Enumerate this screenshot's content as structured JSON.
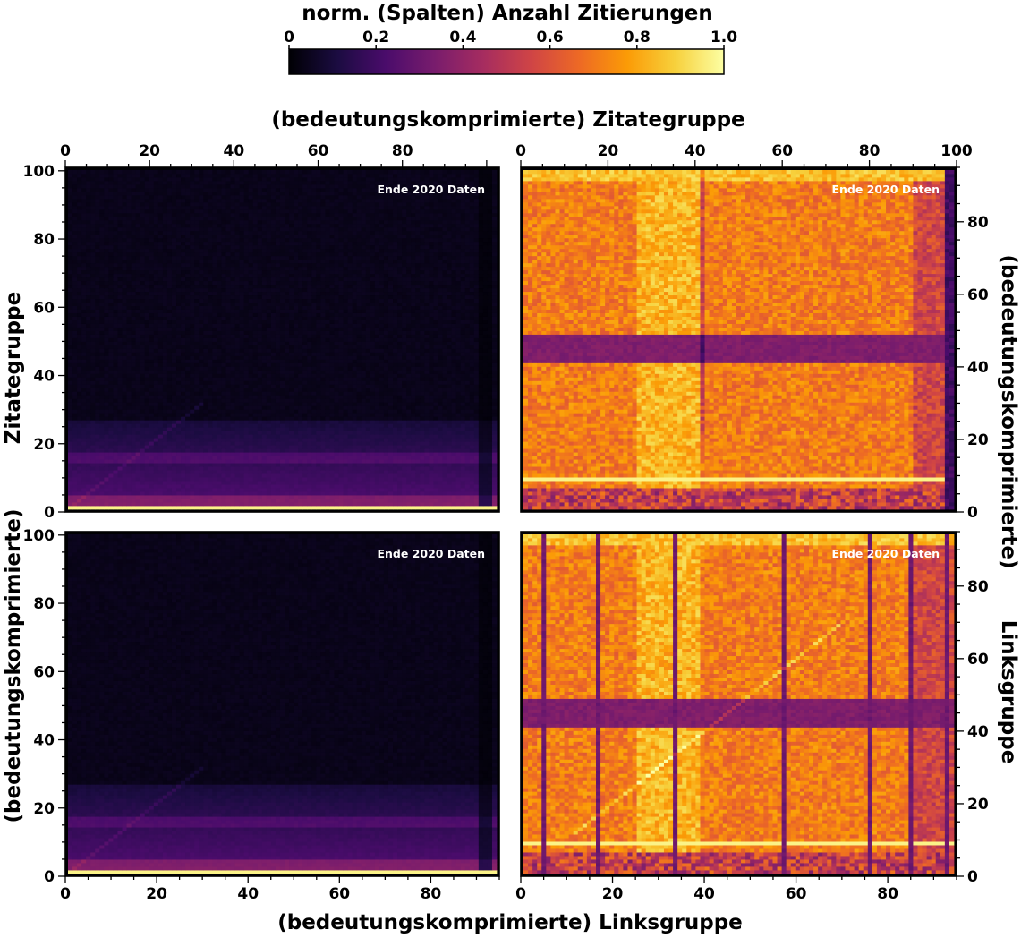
{
  "colorbar": {
    "title": "norm. (Spalten) Anzahl Zitierungen",
    "ticks": [
      0,
      0.2,
      0.4,
      0.6,
      0.8,
      1.0
    ],
    "tick_labels": [
      "0",
      "0.2",
      "0.4",
      "0.6",
      "0.8",
      "1.0"
    ],
    "range": [
      0,
      1
    ],
    "colormap": "inferno",
    "stops": [
      "#000004",
      "#1b0c41",
      "#4a0c6b",
      "#781c6d",
      "#a52c60",
      "#cf4446",
      "#ed6925",
      "#fb9b06",
      "#f7d13d",
      "#fcffa4"
    ]
  },
  "labels": {
    "top_x": "(bedeutungskomprimierte) Zitategruppe",
    "bottom_x": "(bedeutungskomprimierte) Linksgruppe",
    "left_top_y": "Zitategruppe",
    "left_bottom_y": "(bedeutungskomprimierte)",
    "right_top_y": "(bedeutungskomprimierte)",
    "right_bottom_y": "Linksgruppe"
  },
  "chart_data": [
    {
      "type": "heatmap",
      "panel": "top-left",
      "annotation": "Ende 2020 Daten",
      "xlabel": "(bedeutungskomprimierte) Zitategruppe",
      "xlim": [
        0,
        103
      ],
      "xticks": [
        0,
        20,
        40,
        60,
        80
      ],
      "xtick_side": "top",
      "ylabel": "Zitategruppe",
      "ylim": [
        0,
        101
      ],
      "yticks": [
        0,
        20,
        40,
        60,
        80,
        100
      ],
      "ytick_side": "left",
      "value_range": [
        0,
        1
      ],
      "description": "Nearly all cells near 0; brightest row at y≈0 (value ≈1.0); faint purple rows below y≈25; faint diagonal"
    },
    {
      "type": "heatmap",
      "panel": "top-right",
      "annotation": "Ende 2020 Daten",
      "xlabel": "(bedeutungskomprimierte) Zitategruppe",
      "xlim": [
        0,
        100
      ],
      "xticks": [
        0,
        20,
        40,
        60,
        80,
        100
      ],
      "xtick_side": "top",
      "ylabel": "(bedeutungskomprimierte)",
      "ylim": [
        0,
        95
      ],
      "yticks": [
        0,
        20,
        40,
        60,
        80
      ],
      "ytick_side": "right",
      "value_range": [
        0,
        1
      ],
      "description": "High values (orange–yellow) across most cells; dark purple band y≈41–48 and y≈0–6; bright yellow row at y≈8 and y≈93"
    },
    {
      "type": "heatmap",
      "panel": "bottom-left",
      "annotation": "Ende 2020 Daten",
      "xlabel": "(bedeutungskomprimierte) Linksgruppe",
      "xlim": [
        0,
        95
      ],
      "xticks": [
        0,
        20,
        40,
        60,
        80
      ],
      "xtick_side": "bottom",
      "ylabel": "(bedeutungskomprimierte)",
      "ylim": [
        0,
        101
      ],
      "yticks": [
        0,
        20,
        40,
        60,
        80,
        100
      ],
      "ytick_side": "left",
      "value_range": [
        0,
        1
      ],
      "description": "Nearly all cells near 0; brightest row at y≈0 (value ≈1.0); faint purple rows below y≈25"
    },
    {
      "type": "heatmap",
      "panel": "bottom-right",
      "annotation": "Ende 2020 Daten",
      "xlabel": "(bedeutungskomprimierte) Linksgruppe",
      "xlim": [
        0,
        95
      ],
      "xticks": [
        0,
        20,
        40,
        60,
        80
      ],
      "xtick_side": "bottom",
      "ylabel": "Linksgruppe",
      "ylim": [
        0,
        95
      ],
      "yticks": [
        0,
        20,
        40,
        60,
        80
      ],
      "ytick_side": "right",
      "value_range": [
        0,
        1
      ],
      "dark_columns": [
        4,
        16,
        33,
        57,
        76,
        85,
        93
      ],
      "description": "High values across most cells; dark purple vertical columns at listed x; dark band y≈41–48; bright yellow row at y≈8"
    }
  ]
}
